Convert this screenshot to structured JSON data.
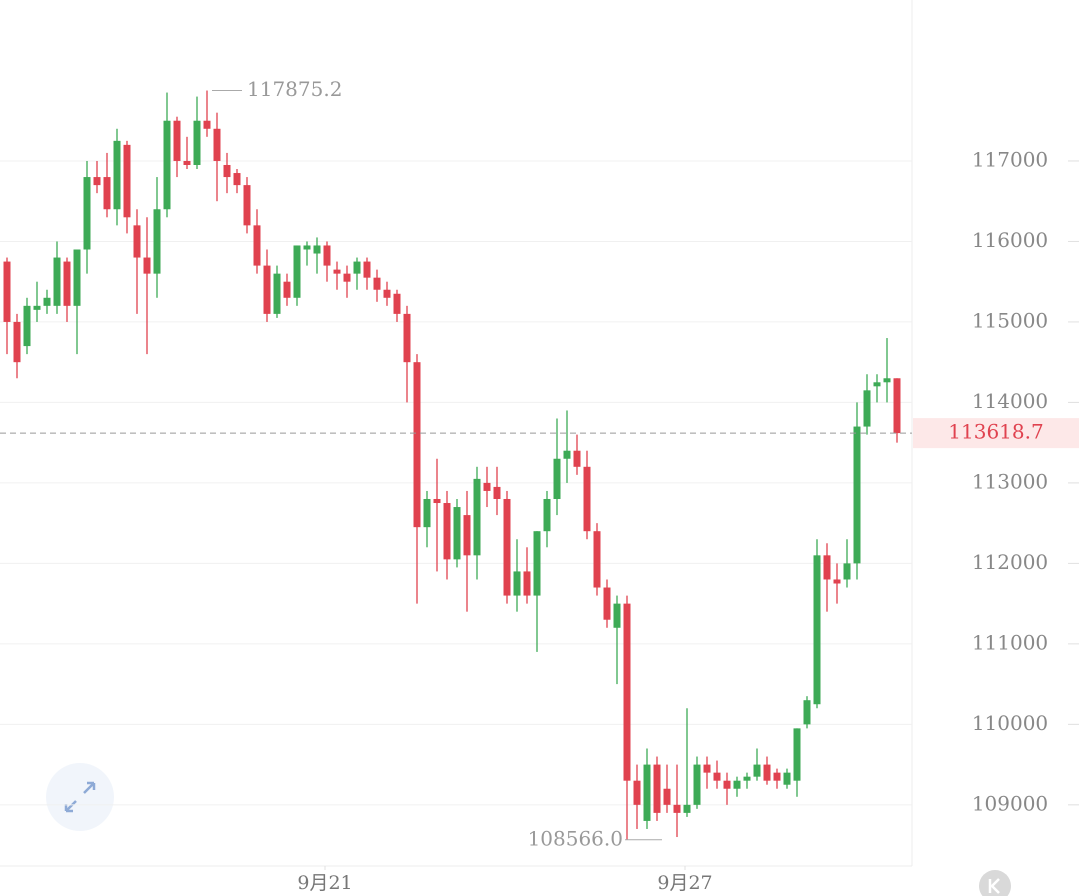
{
  "chart_data": {
    "type": "candlestick",
    "up_color": "#3daa56",
    "down_color": "#e0424f",
    "xlim": [
      -0.7,
      90.5
    ],
    "xticks": [
      {
        "value": 31.8,
        "label": "9月21"
      },
      {
        "value": 67.8,
        "label": "9月27"
      }
    ],
    "ylim": [
      108240,
      119000
    ],
    "yticks": [
      109000,
      110000,
      111000,
      112000,
      113000,
      114000,
      115000,
      116000,
      117000
    ],
    "grid": true,
    "high_label": 117875.2,
    "low_label": {
      "value": 108566,
      "label": "108566.0"
    },
    "last_price": 113618.7,
    "open": [
      115750,
      115000,
      114700,
      115150,
      115200,
      115200,
      115750,
      115200,
      115900,
      116800,
      116800,
      116400,
      117200,
      116200,
      115800,
      115600,
      116400,
      117500,
      117000,
      116950,
      117500,
      117400,
      116950,
      116850,
      116700,
      116200,
      115700,
      115100,
      115500,
      115300,
      115900,
      115850,
      115950,
      115650,
      115600,
      115600,
      115750,
      115550,
      115400,
      115350,
      115100,
      114500,
      112450,
      112800,
      112750,
      112050,
      112600,
      112100,
      113000,
      112950,
      112800,
      111600,
      111900,
      111600,
      112400,
      112800,
      113300,
      113400,
      113200,
      112400,
      111700,
      111200,
      111500,
      109300,
      108800,
      109500,
      109200,
      109000,
      108900,
      109000,
      109500,
      109400,
      109300,
      109200,
      109300,
      109350,
      109500,
      109400,
      109250,
      109300,
      110000,
      110250,
      112100,
      111800,
      111800,
      112000,
      113700,
      114200,
      114250,
      114300
    ],
    "high": [
      115800,
      115100,
      115300,
      115500,
      115400,
      116000,
      115800,
      115900,
      117000,
      117000,
      117100,
      117400,
      117250,
      116400,
      116300,
      116800,
      117850,
      117550,
      117300,
      117800,
      117875.2,
      117600,
      117100,
      116900,
      116800,
      116400,
      115900,
      115700,
      115600,
      115950,
      116000,
      116050,
      116000,
      115750,
      115700,
      115800,
      115800,
      115650,
      115500,
      115400,
      115200,
      114600,
      112900,
      113300,
      112900,
      112800,
      112900,
      113200,
      113200,
      113200,
      112900,
      112300,
      112200,
      112400,
      112900,
      113800,
      113900,
      113600,
      113400,
      112500,
      111800,
      111600,
      111600,
      109500,
      109700,
      109600,
      109500,
      109500,
      110200,
      109600,
      109600,
      109550,
      109400,
      109350,
      109400,
      109700,
      109600,
      109450,
      109450,
      109950,
      110350,
      112300,
      112250,
      112000,
      112300,
      114000,
      114350,
      114350,
      114800,
      114300
    ],
    "low": [
      114600,
      114300,
      114600,
      115000,
      115100,
      115100,
      115000,
      114600,
      115600,
      116600,
      116300,
      116200,
      116100,
      115100,
      114600,
      115300,
      116300,
      116800,
      116900,
      116900,
      117300,
      116500,
      116600,
      116600,
      116100,
      115600,
      115000,
      115050,
      115200,
      115200,
      115700,
      115600,
      115500,
      115400,
      115300,
      115400,
      115400,
      115250,
      115200,
      115000,
      114000,
      111500,
      112200,
      111900,
      111800,
      111950,
      111400,
      111800,
      112700,
      112600,
      111500,
      111400,
      111500,
      110900,
      112200,
      112600,
      113000,
      113100,
      112300,
      111600,
      111200,
      110500,
      108566,
      108700,
      108700,
      108800,
      108900,
      108600,
      108850,
      108950,
      109200,
      109200,
      109000,
      109100,
      109200,
      109300,
      109250,
      109200,
      109200,
      109100,
      109950,
      110200,
      111400,
      111500,
      111700,
      111800,
      113600,
      114000,
      114000,
      113500
    ],
    "close": [
      115000,
      114500,
      115200,
      115200,
      115300,
      115800,
      115200,
      115900,
      116800,
      116700,
      116400,
      117250,
      116300,
      115800,
      115600,
      116400,
      117500,
      117000,
      116950,
      117500,
      117400,
      117000,
      116800,
      116700,
      116200,
      115700,
      115100,
      115600,
      115300,
      115950,
      115950,
      115950,
      115700,
      115600,
      115500,
      115750,
      115550,
      115400,
      115300,
      115100,
      114500,
      112450,
      112800,
      112750,
      112050,
      112700,
      112100,
      113050,
      112900,
      112800,
      111600,
      111900,
      111600,
      112400,
      112800,
      113300,
      113400,
      113200,
      112400,
      111700,
      111300,
      111500,
      109300,
      109000,
      109500,
      108900,
      109000,
      108900,
      109000,
      109500,
      109400,
      109300,
      109200,
      109300,
      109350,
      109500,
      109300,
      109300,
      109400,
      109950,
      110300,
      112100,
      111800,
      111750,
      112000,
      113700,
      114150,
      114250,
      114300,
      113618.7
    ]
  }
}
